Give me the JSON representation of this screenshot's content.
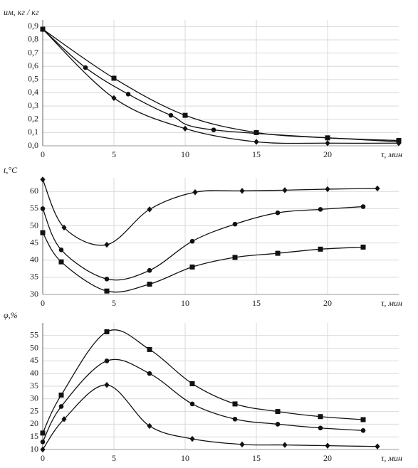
{
  "chart_data": [
    {
      "type": "line",
      "y_label": "uм, кг / кг",
      "x_label": "τ, мин",
      "xlim": [
        0,
        25
      ],
      "xticks": [
        0,
        5,
        10,
        15,
        20
      ],
      "ylim": [
        0,
        0.95
      ],
      "yticks": [
        {
          "value": 0,
          "label": "0,0"
        },
        {
          "value": 0.1,
          "label": "0,1"
        },
        {
          "value": 0.2,
          "label": "0,2"
        },
        {
          "value": 0.3,
          "label": "0,3"
        },
        {
          "value": 0.4,
          "label": "0,4"
        },
        {
          "value": 0.5,
          "label": "0,5"
        },
        {
          "value": 0.6,
          "label": "0,6"
        },
        {
          "value": 0.7,
          "label": "0,7"
        },
        {
          "value": 0.8,
          "label": "0,8"
        },
        {
          "value": 0.9,
          "label": "0,9"
        }
      ],
      "grid": true,
      "series": [
        {
          "marker": "square",
          "color": "#111",
          "x": [
            0,
            5,
            10,
            15,
            20,
            25
          ],
          "values": [
            0.88,
            0.51,
            0.23,
            0.1,
            0.06,
            0.04
          ]
        },
        {
          "marker": "circle",
          "color": "#111",
          "x": [
            0,
            3,
            6,
            9,
            12,
            25
          ],
          "values": [
            0.88,
            0.59,
            0.39,
            0.23,
            0.12,
            0.03
          ]
        },
        {
          "marker": "diamond",
          "color": "#111",
          "x": [
            0,
            5,
            10,
            15,
            20,
            25
          ],
          "values": [
            0.88,
            0.36,
            0.13,
            0.03,
            0.02,
            0.02
          ]
        }
      ]
    },
    {
      "type": "line",
      "y_label": "t,°C",
      "x_label": "τ, мин",
      "xlim": [
        0,
        25
      ],
      "xticks": [
        0,
        5,
        10,
        15,
        20
      ],
      "ylim": [
        30,
        64
      ],
      "yticks": [
        30,
        35,
        40,
        45,
        50,
        55,
        60
      ],
      "grid": true,
      "series": [
        {
          "marker": "diamond",
          "color": "#111",
          "x": [
            0,
            1.5,
            4.5,
            7.5,
            10.7,
            14,
            17,
            20,
            23.5
          ],
          "values": [
            63.5,
            49.5,
            44.5,
            54.8,
            59.8,
            60.2,
            60.4,
            60.7,
            60.9
          ]
        },
        {
          "marker": "circle",
          "color": "#111",
          "x": [
            0,
            1.3,
            4.5,
            7.5,
            10.5,
            13.5,
            16.5,
            19.5,
            22.5
          ],
          "values": [
            55,
            43,
            34.5,
            37,
            45.5,
            50.5,
            53.8,
            54.8,
            55.6
          ]
        },
        {
          "marker": "square",
          "color": "#111",
          "x": [
            0,
            1.3,
            4.5,
            7.5,
            10.5,
            13.5,
            16.5,
            19.5,
            22.5
          ],
          "values": [
            48,
            39.5,
            31,
            33,
            38,
            40.8,
            42,
            43.2,
            43.8
          ]
        }
      ]
    },
    {
      "type": "line",
      "y_label": "φ,%",
      "x_label": "τ, мин",
      "xlim": [
        0,
        25
      ],
      "xticks": [
        0,
        5,
        10,
        15,
        20
      ],
      "ylim": [
        10,
        60
      ],
      "yticks": [
        10,
        15,
        20,
        25,
        30,
        35,
        40,
        45,
        50,
        55
      ],
      "grid": true,
      "series": [
        {
          "marker": "square",
          "color": "#111",
          "x": [
            0,
            1.3,
            4.5,
            7.5,
            10.5,
            13.5,
            16.5,
            19.5,
            22.5
          ],
          "values": [
            16.5,
            31.5,
            56.5,
            49.5,
            36,
            28,
            25,
            23,
            21.8
          ]
        },
        {
          "marker": "circle",
          "color": "#111",
          "x": [
            0,
            1.3,
            4.5,
            7.5,
            10.5,
            13.5,
            16.5,
            19.5,
            22.5
          ],
          "values": [
            13,
            27,
            45,
            40,
            28,
            22,
            20,
            18.5,
            17.5
          ]
        },
        {
          "marker": "diamond",
          "color": "#111",
          "x": [
            0,
            1.5,
            4.5,
            7.5,
            10.5,
            14,
            17,
            20,
            23.5
          ],
          "values": [
            10,
            22,
            35.5,
            19.3,
            14.2,
            12,
            11.8,
            11.5,
            11.2
          ]
        }
      ]
    }
  ]
}
